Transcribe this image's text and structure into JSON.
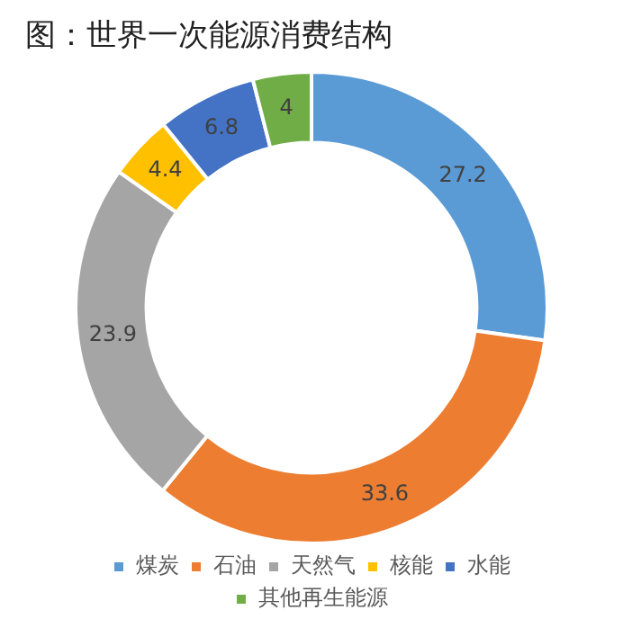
{
  "chart_data": {
    "type": "donut",
    "title": "图：世界一次能源消费结构",
    "categories": [
      "煤炭",
      "石油",
      "天然气",
      "核能",
      "水能",
      "其他再生能源"
    ],
    "values": [
      27.2,
      33.6,
      23.9,
      4.4,
      6.8,
      4
    ],
    "colors": [
      "#5b9bd5",
      "#ed7d31",
      "#a5a5a5",
      "#ffc000",
      "#4472c4",
      "#70ad47"
    ],
    "data_labels": true,
    "legend": "bottom"
  }
}
